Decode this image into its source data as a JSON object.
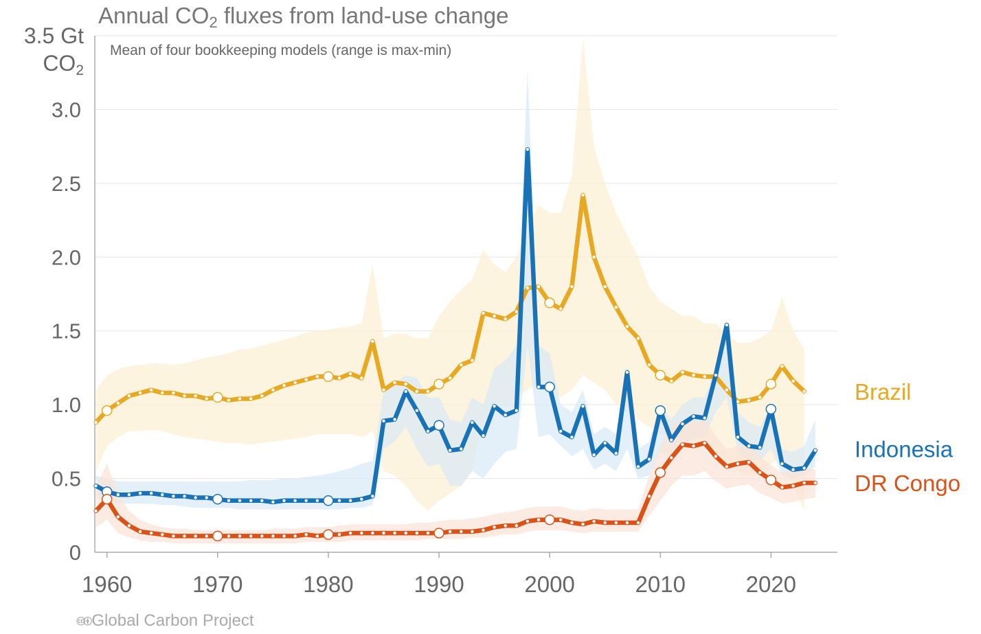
{
  "chart_data": {
    "type": "line",
    "title_pre": "Annual CO",
    "title_sub": "2",
    "title_post": " fluxes from land-use change",
    "subtitle": "Mean of four bookkeeping models (range is max-min)",
    "ylabel_line1": "3.5 Gt",
    "ylabel_line2_pre": "CO",
    "ylabel_line2_sub": "2",
    "ylim": [
      0,
      3.5
    ],
    "xlim": [
      1958.9,
      2026
    ],
    "yticks": [
      "0",
      "0.5",
      "1.0",
      "1.5",
      "2.0",
      "2.5",
      "3.0"
    ],
    "xticks": [
      "1960",
      "1970",
      "1980",
      "1990",
      "2000",
      "2010",
      "2020"
    ],
    "grid": true,
    "legend": "right-inline",
    "x_start": 1959,
    "series": [
      {
        "name": "Brazil",
        "color": "#e7a823",
        "band_color": "#fbefd0",
        "values": [
          0.88,
          0.96,
          1.01,
          1.06,
          1.08,
          1.1,
          1.08,
          1.08,
          1.06,
          1.06,
          1.04,
          1.05,
          1.03,
          1.04,
          1.04,
          1.06,
          1.1,
          1.13,
          1.15,
          1.17,
          1.19,
          1.19,
          1.18,
          1.21,
          1.18,
          1.43,
          1.1,
          1.15,
          1.14,
          1.09,
          1.09,
          1.14,
          1.18,
          1.27,
          1.3,
          1.62,
          1.6,
          1.58,
          1.63,
          1.79,
          1.8,
          1.69,
          1.65,
          1.8,
          2.42,
          2.0,
          1.8,
          1.66,
          1.53,
          1.45,
          1.27,
          1.2,
          1.16,
          1.22,
          1.2,
          1.19,
          1.19,
          1.1,
          1.02,
          1.03,
          1.05,
          1.14,
          1.26,
          1.16,
          1.09
        ],
        "lower": [
          0.55,
          0.72,
          0.78,
          0.82,
          0.82,
          0.83,
          0.82,
          0.8,
          0.78,
          0.77,
          0.76,
          0.75,
          0.74,
          0.74,
          0.73,
          0.74,
          0.75,
          0.76,
          0.77,
          0.78,
          0.8,
          0.8,
          0.8,
          0.8,
          0.78,
          0.82,
          0.55,
          0.52,
          0.45,
          0.35,
          0.28,
          0.35,
          0.4,
          0.45,
          0.55,
          0.88,
          0.95,
          1.0,
          1.05,
          1.1,
          1.15,
          1.1,
          1.05,
          1.1,
          1.2,
          1.15,
          1.1,
          1.0,
          0.95,
          0.9,
          0.85,
          0.8,
          0.78,
          0.78,
          0.75,
          0.72,
          0.68,
          0.62,
          0.55,
          0.52,
          0.52,
          0.6,
          0.65,
          0.45,
          0.28
        ],
        "upper": [
          1.1,
          1.2,
          1.24,
          1.26,
          1.27,
          1.28,
          1.28,
          1.27,
          1.28,
          1.3,
          1.32,
          1.33,
          1.35,
          1.37,
          1.38,
          1.4,
          1.42,
          1.44,
          1.46,
          1.49,
          1.5,
          1.51,
          1.52,
          1.53,
          1.55,
          1.95,
          1.45,
          1.48,
          1.48,
          1.45,
          1.45,
          1.6,
          1.7,
          1.78,
          1.85,
          2.05,
          1.95,
          1.9,
          2.0,
          2.2,
          2.35,
          2.3,
          2.3,
          2.55,
          3.48,
          2.75,
          2.5,
          2.3,
          2.15,
          2.0,
          1.8,
          1.7,
          1.65,
          1.6,
          1.6,
          1.55,
          1.55,
          1.48,
          1.42,
          1.42,
          1.45,
          1.5,
          1.73,
          1.5,
          1.38
        ],
        "label_y": 1.09
      },
      {
        "name": "Indonesia",
        "color": "#1a72b6",
        "band_color": "#d9e9f6",
        "values": [
          0.45,
          0.41,
          0.39,
          0.39,
          0.4,
          0.4,
          0.39,
          0.38,
          0.38,
          0.37,
          0.37,
          0.36,
          0.35,
          0.35,
          0.35,
          0.35,
          0.34,
          0.35,
          0.35,
          0.35,
          0.35,
          0.35,
          0.35,
          0.35,
          0.36,
          0.38,
          0.89,
          0.9,
          1.09,
          0.96,
          0.82,
          0.86,
          0.69,
          0.7,
          0.88,
          0.79,
          0.99,
          0.93,
          0.96,
          2.73,
          1.12,
          1.12,
          0.82,
          0.78,
          0.99,
          0.66,
          0.74,
          0.67,
          1.22,
          0.58,
          0.63,
          0.96,
          0.76,
          0.87,
          0.92,
          0.91,
          1.2,
          1.54,
          0.78,
          0.72,
          0.71,
          0.97,
          0.6,
          0.56,
          0.57,
          0.69
        ],
        "lower": [
          0.38,
          0.34,
          0.33,
          0.33,
          0.33,
          0.33,
          0.32,
          0.32,
          0.31,
          0.3,
          0.3,
          0.3,
          0.3,
          0.29,
          0.29,
          0.29,
          0.29,
          0.29,
          0.29,
          0.29,
          0.29,
          0.29,
          0.29,
          0.3,
          0.3,
          0.32,
          0.7,
          0.75,
          0.85,
          0.7,
          0.58,
          0.6,
          0.45,
          0.45,
          0.55,
          0.5,
          0.6,
          0.68,
          0.7,
          1.4,
          0.78,
          0.8,
          0.72,
          0.65,
          0.7,
          0.56,
          0.6,
          0.55,
          0.7,
          0.5,
          0.52,
          0.68,
          0.64,
          0.72,
          0.78,
          0.78,
          0.95,
          1.05,
          0.68,
          0.62,
          0.62,
          0.7,
          0.52,
          0.5,
          0.52,
          0.58
        ],
        "upper": [
          0.52,
          0.5,
          0.48,
          0.48,
          0.48,
          0.48,
          0.48,
          0.48,
          0.48,
          0.48,
          0.48,
          0.48,
          0.48,
          0.48,
          0.49,
          0.49,
          0.49,
          0.5,
          0.5,
          0.51,
          0.52,
          0.53,
          0.55,
          0.57,
          0.6,
          0.62,
          1.1,
          1.15,
          1.2,
          1.18,
          1.05,
          1.05,
          0.9,
          0.88,
          1.05,
          1.0,
          1.25,
          1.3,
          1.4,
          3.28,
          1.4,
          1.35,
          1.0,
          0.95,
          1.1,
          0.8,
          0.85,
          0.8,
          1.25,
          0.7,
          0.75,
          1.0,
          0.9,
          1.0,
          1.05,
          1.05,
          1.25,
          1.58,
          0.95,
          0.88,
          0.85,
          1.0,
          0.7,
          0.68,
          0.72,
          0.9
        ],
        "label_y": 0.7
      },
      {
        "name": "DR Congo",
        "color": "#d95319",
        "band_color": "#fbe2d6",
        "values": [
          0.28,
          0.36,
          0.24,
          0.18,
          0.14,
          0.13,
          0.12,
          0.11,
          0.11,
          0.11,
          0.11,
          0.11,
          0.11,
          0.11,
          0.11,
          0.11,
          0.11,
          0.11,
          0.11,
          0.12,
          0.11,
          0.12,
          0.12,
          0.13,
          0.13,
          0.13,
          0.13,
          0.13,
          0.13,
          0.13,
          0.13,
          0.13,
          0.14,
          0.14,
          0.14,
          0.15,
          0.17,
          0.18,
          0.18,
          0.21,
          0.22,
          0.22,
          0.22,
          0.2,
          0.19,
          0.21,
          0.2,
          0.2,
          0.2,
          0.2,
          0.38,
          0.54,
          0.64,
          0.73,
          0.72,
          0.74,
          0.65,
          0.58,
          0.6,
          0.61,
          0.54,
          0.49,
          0.44,
          0.45,
          0.47,
          0.47
        ],
        "lower": [
          0.17,
          0.22,
          0.13,
          0.1,
          0.08,
          0.07,
          0.07,
          0.06,
          0.06,
          0.06,
          0.06,
          0.06,
          0.06,
          0.06,
          0.06,
          0.06,
          0.06,
          0.06,
          0.06,
          0.07,
          0.07,
          0.07,
          0.07,
          0.08,
          0.08,
          0.08,
          0.08,
          0.08,
          0.08,
          0.08,
          0.09,
          0.09,
          0.09,
          0.09,
          0.1,
          0.1,
          0.11,
          0.12,
          0.12,
          0.14,
          0.15,
          0.15,
          0.15,
          0.14,
          0.13,
          0.14,
          0.14,
          0.14,
          0.14,
          0.14,
          0.25,
          0.35,
          0.45,
          0.52,
          0.52,
          0.55,
          0.48,
          0.43,
          0.45,
          0.46,
          0.4,
          0.37,
          0.33,
          0.34,
          0.36,
          0.37
        ],
        "upper": [
          0.45,
          0.6,
          0.4,
          0.28,
          0.22,
          0.19,
          0.17,
          0.16,
          0.16,
          0.15,
          0.15,
          0.15,
          0.15,
          0.15,
          0.15,
          0.15,
          0.16,
          0.16,
          0.16,
          0.17,
          0.17,
          0.17,
          0.18,
          0.19,
          0.19,
          0.19,
          0.19,
          0.19,
          0.19,
          0.2,
          0.2,
          0.21,
          0.22,
          0.22,
          0.23,
          0.24,
          0.26,
          0.27,
          0.28,
          0.3,
          0.31,
          0.31,
          0.31,
          0.29,
          0.28,
          0.3,
          0.29,
          0.29,
          0.29,
          0.29,
          0.52,
          0.72,
          0.86,
          0.9,
          0.88,
          0.9,
          0.79,
          0.7,
          0.72,
          0.72,
          0.65,
          0.59,
          0.54,
          0.55,
          0.57,
          0.56
        ],
        "label_y": 0.47
      }
    ]
  },
  "footer": {
    "cc_icons": "🅭🅯",
    "credit": "Global Carbon Project"
  }
}
